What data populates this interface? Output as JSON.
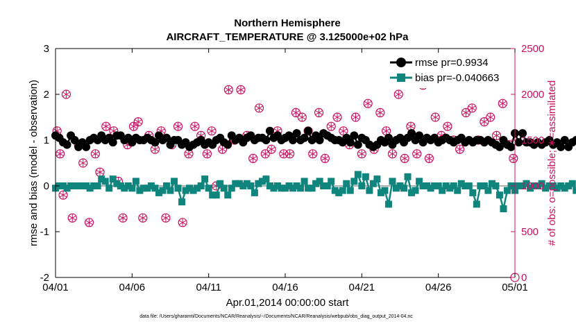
{
  "chart_data": {
    "type": "line",
    "title": "Northern Hemisphere",
    "subtitle": "AIRCRAFT_TEMPERATURE @ 3.125000e+02 hPa",
    "xlabel": "Apr.01,2014 00:00:00 start",
    "ylabel": "rmse and bias (model - observation)",
    "y2label": "# of obs: o=possible; ∗=assimilated",
    "footer": "data file: /Users/gharamti/Documents/NCAR/Reanalysis/~/Documents/NCAR/Reanalysis/webpub/obs_diag_output_2014-04.nc",
    "xlim": [
      0,
      30
    ],
    "ylim": [
      -2,
      3
    ],
    "y2lim": [
      0,
      2500
    ],
    "x_ticks": [
      0,
      5,
      10,
      15,
      20,
      25,
      30
    ],
    "x_tick_labels": [
      "04/01",
      "04/06",
      "04/11",
      "04/16",
      "04/21",
      "04/26",
      "05/01"
    ],
    "y_ticks": [
      -2,
      -1,
      0,
      1,
      2,
      3
    ],
    "y_tick_labels": [
      "-2",
      "-1",
      "0",
      "1",
      "2",
      "3"
    ],
    "y2_ticks": [
      0,
      500,
      1000,
      1500,
      2000,
      2500
    ],
    "y2_tick_labels": [
      "0",
      "500",
      "1000",
      "1500",
      "2000",
      "2500"
    ],
    "legend_position": "top-right",
    "colors": {
      "rmse": "#000000",
      "bias": "#0f857e",
      "obs": "#cc0f60",
      "zero_line": "#b3b3b3"
    },
    "x_step_days": 0.25,
    "series": [
      {
        "name": "rmse",
        "legend": "rmse pr=0.9934",
        "marker": "circle",
        "values": [
          1.1,
          1.05,
          0.95,
          0.9,
          1.1,
          1.0,
          0.85,
          0.95,
          0.85,
          1.0,
          1.05,
          1.0,
          1.1,
          1.0,
          1.05,
          0.95,
          1.1,
          1.1,
          1.0,
          1.05,
          0.95,
          1.05,
          1.0,
          1.0,
          1.05,
          1.0,
          0.95,
          1.1,
          1.0,
          1.05,
          0.9,
          1.0,
          1.0,
          0.9,
          0.95,
          0.85,
          0.9,
          0.95,
          1.0,
          0.9,
          0.95,
          0.9,
          1.0,
          1.05,
          0.95,
          0.9,
          1.1,
          1.0,
          1.05,
          0.95,
          1.05,
          1.1,
          1.0,
          1.05,
          1.05,
          1.0,
          1.2,
          1.05,
          1.1,
          1.0,
          1.05,
          1.1,
          1.0,
          1.15,
          1.0,
          1.05,
          1.2,
          1.0,
          1.1,
          1.0,
          1.15,
          1.1,
          1.05,
          1.0,
          1.0,
          0.95,
          1.05,
          0.95,
          1.1,
          0.9,
          1.05,
          1.0,
          0.9,
          0.85,
          0.9,
          1.0,
          0.95,
          1.05,
          0.9,
          1.0,
          1.05,
          0.95,
          1.05,
          1.15,
          1.0,
          1.1,
          0.95,
          1.05,
          1.0,
          1.05,
          0.95,
          1.0,
          1.05,
          1.0,
          0.95,
          1.0,
          1.05,
          0.95,
          1.0,
          0.95,
          1.0,
          1.0,
          0.95,
          1.0,
          0.95,
          0.9,
          0.85,
          1.0,
          0.9,
          0.85,
          1.15,
          0.95,
          1.15,
          0.95,
          0.95,
          0.9,
          0.95,
          0.9,
          0.95,
          1.0,
          0.9,
          0.95,
          0.85,
          1.0,
          0.85,
          0.95,
          1.0,
          0.8,
          0.85,
          0.95,
          0.8,
          0.9,
          0.95,
          0.85,
          0.8,
          0.95,
          0.85,
          0.9,
          0.95,
          0.8,
          0.85,
          0.9,
          0.95,
          0.85,
          0.9,
          0.8,
          0.95,
          0.85,
          0.9,
          0.8,
          0.85,
          0.9,
          0.85,
          0.8,
          0.8,
          0.85,
          0.8,
          0.8,
          0.85,
          0.8,
          0.75,
          0.8,
          0.75,
          0.8,
          0.85,
          0.8,
          0.8,
          0.85,
          0.75,
          0.8,
          0.75,
          0.8,
          0.8,
          0.85,
          0.8,
          0.8,
          0.85,
          0.8,
          0.8,
          0.85,
          0.85,
          0.8,
          0.8,
          0.8,
          0.9,
          0.95,
          0.9,
          0.9,
          0.9,
          0.85,
          0.9,
          0.9,
          0.85,
          0.85,
          0.8,
          0.85,
          0.8,
          0.8,
          0.8,
          0.85,
          0.8,
          0.8,
          0.8,
          0.8,
          0.8
        ]
      },
      {
        "name": "bias",
        "legend": "bias pr=-0.040663",
        "marker": "square",
        "values": [
          -0.05,
          0.0,
          0.0,
          -0.05,
          0.0,
          0.0,
          0.0,
          0.0,
          0.0,
          -0.05,
          0.0,
          0.0,
          0.15,
          0.1,
          -0.05,
          0.15,
          0.05,
          0.0,
          -0.05,
          0.0,
          -0.05,
          0.1,
          -0.1,
          -0.05,
          -0.05,
          0.0,
          -0.05,
          -0.15,
          -0.1,
          0.0,
          -0.1,
          0.1,
          -0.05,
          -0.35,
          -0.1,
          -0.05,
          -0.1,
          -0.05,
          0.0,
          0.15,
          -0.05,
          -0.2,
          -0.2,
          0.05,
          -0.05,
          -0.2,
          -0.05,
          0.05,
          0.05,
          0.0,
          0.05,
          0.0,
          -0.15,
          0.05,
          0.1,
          0.15,
          0.0,
          -0.05,
          0.0,
          -0.05,
          -0.05,
          0.0,
          -0.05,
          0.0,
          -0.05,
          0.1,
          -0.05,
          -0.05,
          0.05,
          0.1,
          0.0,
          0.0,
          0.1,
          -0.1,
          -0.15,
          -0.1,
          0.05,
          -0.1,
          0.1,
          0.25,
          0.0,
          0.2,
          -0.1,
          0.05,
          0.15,
          -0.15,
          -0.1,
          -0.4,
          0.1,
          -0.05,
          0.0,
          -0.05,
          0.2,
          -0.15,
          -0.1,
          0.1,
          0.0,
          0.0,
          -0.05,
          0.0,
          0.0,
          -0.1,
          0.0,
          -0.05,
          0.0,
          -0.1,
          0.05,
          0.0,
          0.0,
          -0.15,
          -0.4,
          0.0,
          0.0,
          -0.1,
          0.05,
          0.0,
          -0.2,
          -0.5,
          -0.1,
          0.0,
          -0.1,
          0.0,
          0.0,
          0.05,
          -0.05,
          0.0,
          0.0,
          0.05,
          -0.05,
          0.0,
          0.0,
          -0.05,
          0.0,
          -0.05,
          0.0,
          0.05,
          -0.1,
          0.0,
          -0.05,
          0.0,
          -0.05,
          0.0,
          -0.05,
          0.0,
          0.0,
          -0.05,
          0.0,
          0.0,
          0.05,
          -0.05,
          0.0,
          0.0,
          -0.05,
          0.0,
          0.0,
          0.0,
          -0.05,
          0.0,
          -0.05,
          0.0,
          0.0,
          -0.05,
          0.0,
          0.0,
          -0.1,
          0.0,
          0.0,
          0.0,
          -0.1,
          -0.05,
          0.0,
          -0.15,
          0.0,
          -0.1,
          0.0,
          0.0,
          0.0,
          0.0,
          0.05,
          0.0,
          -0.2,
          0.0,
          0.0,
          0.25,
          0.05,
          0.0,
          0.0,
          0.05,
          0.05,
          0.1,
          0.1,
          0.05,
          0.05,
          0.0,
          0.05,
          0.0,
          0.0,
          -0.05,
          0.0,
          -0.05,
          -0.05,
          -0.05,
          -0.05,
          -0.05,
          -0.1,
          -0.05,
          -0.05,
          0.0,
          0.0,
          0.0,
          -0.05,
          0.0,
          0.0,
          -0.05,
          -0.05,
          0.0,
          -0.05,
          0.0
        ]
      },
      {
        "name": "obs_counts",
        "axis": "right",
        "marker": "circled-asterisk",
        "x": [
          0.1,
          0.3,
          0.5,
          0.7,
          1.1,
          1.5,
          1.8,
          2.2,
          2.6,
          2.9,
          3.3,
          3.8,
          4.1,
          4.4,
          4.7,
          5.1,
          5.4,
          5.7,
          6.1,
          6.5,
          6.9,
          7.2,
          7.6,
          8.0,
          8.3,
          8.7,
          9.1,
          9.5,
          9.9,
          10.2,
          10.5,
          10.9,
          11.3,
          11.7,
          12.1,
          12.5,
          12.9,
          13.3,
          13.7,
          14.1,
          14.5,
          14.9,
          15.3,
          15.7,
          16.1,
          16.5,
          16.8,
          17.2,
          17.6,
          18.0,
          18.4,
          18.8,
          19.2,
          19.6,
          20.0,
          20.4,
          20.8,
          21.2,
          21.6,
          22.0,
          22.4,
          22.8,
          23.2,
          23.6,
          24.0,
          24.4,
          24.8,
          25.2,
          25.6,
          26.0,
          26.4,
          26.8,
          27.2,
          27.6,
          28.0,
          28.4,
          28.8,
          29.2,
          29.6,
          29.9
        ],
        "values": [
          1600,
          1350,
          900,
          2000,
          650,
          1450,
          1250,
          600,
          1350,
          1150,
          1650,
          1600,
          1050,
          650,
          1450,
          1650,
          1700,
          650,
          1550,
          1400,
          1600,
          650,
          1450,
          1650,
          600,
          1350,
          1650,
          1550,
          1350,
          1600,
          1000,
          1400,
          2050,
          1500,
          2050,
          1550,
          1300,
          1850,
          1350,
          1400,
          1600,
          1350,
          1350,
          1800,
          1750,
          1600,
          1350,
          1800,
          1300,
          1650,
          1750,
          1600,
          1450,
          1750,
          1350,
          1900,
          1400,
          1800,
          1600,
          1350,
          2000,
          1300,
          1650,
          1350,
          2100,
          1300,
          1750,
          1550,
          1650,
          1500,
          1400,
          1800,
          1850,
          1500,
          1700,
          1750,
          1550,
          1900,
          1450,
          1300
        ]
      }
    ]
  }
}
